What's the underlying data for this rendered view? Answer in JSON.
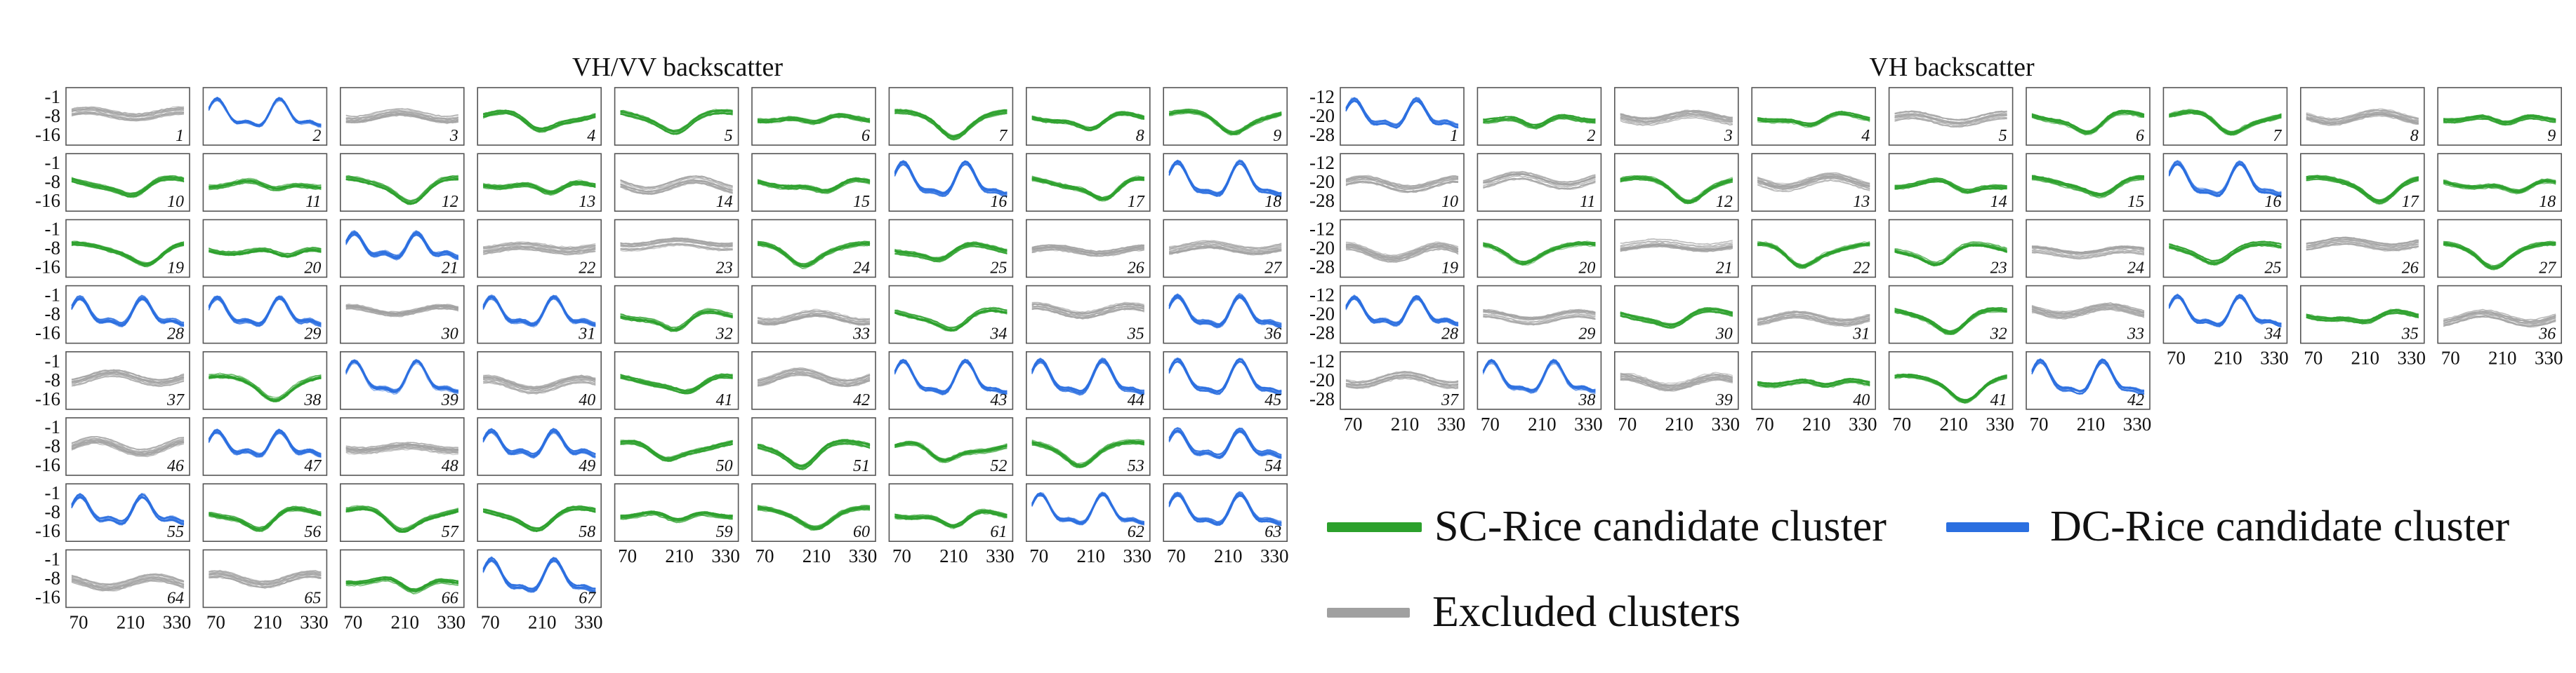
{
  "panels": [
    {
      "title": "VH/VV backscatter",
      "ytick_labels": [
        "-1",
        "-8",
        "-16"
      ],
      "xtick_labels": [
        "70",
        "210",
        "330"
      ],
      "columns": 9,
      "cluster_count": 67
    },
    {
      "title": "VH backscatter",
      "ytick_labels": [
        "-12",
        "-20",
        "-28"
      ],
      "xtick_labels": [
        "70",
        "210",
        "330"
      ],
      "columns": 9,
      "cluster_count": 42
    }
  ],
  "legend": {
    "sc_label": "SC-Rice candidate cluster",
    "dc_label": "DC-Rice candidate cluster",
    "excluded_label": "Excluded clusters"
  },
  "colors": {
    "sc": "#2ca02c",
    "dc": "#2b6fe0",
    "excluded": "#a0a0a0"
  },
  "chart_data": [
    {
      "type": "line",
      "title": "VH/VV backscatter",
      "x_ticks": [
        70,
        210,
        330
      ],
      "xlim": [
        30,
        370
      ],
      "y_ticks": [
        -1,
        -8,
        -16
      ],
      "ylim": [
        -19,
        2
      ],
      "categories_legend": {
        "sc": "SC-Rice candidate cluster",
        "dc": "DC-Rice candidate cluster",
        "excluded": "Excluded clusters"
      },
      "clusters": {
        "sc": [
          4,
          5,
          6,
          7,
          8,
          9,
          10,
          11,
          12,
          13,
          15,
          17,
          19,
          20,
          24,
          25,
          32,
          34,
          38,
          41,
          50,
          51,
          52,
          53,
          56,
          57,
          58,
          59,
          60,
          61,
          66
        ],
        "dc": [
          2,
          16,
          18,
          21,
          28,
          29,
          31,
          36,
          39,
          43,
          44,
          45,
          47,
          49,
          54,
          55,
          62,
          63,
          67
        ],
        "excluded": [
          1,
          3,
          14,
          22,
          23,
          26,
          27,
          30,
          33,
          35,
          37,
          40,
          42,
          46,
          48,
          64,
          65
        ]
      }
    },
    {
      "type": "line",
      "title": "VH backscatter",
      "x_ticks": [
        70,
        210,
        330
      ],
      "xlim": [
        30,
        370
      ],
      "y_ticks": [
        -12,
        -20,
        -28
      ],
      "ylim": [
        -31,
        -9
      ],
      "categories_legend": {
        "sc": "SC-Rice candidate cluster",
        "dc": "DC-Rice candidate cluster",
        "excluded": "Excluded clusters"
      },
      "clusters": {
        "sc": [
          2,
          4,
          6,
          7,
          9,
          12,
          14,
          15,
          17,
          18,
          20,
          22,
          23,
          25,
          27,
          30,
          32,
          35,
          40,
          41
        ],
        "dc": [
          1,
          16,
          28,
          34,
          38,
          42
        ],
        "excluded": [
          3,
          5,
          8,
          10,
          11,
          13,
          19,
          21,
          24,
          26,
          29,
          31,
          33,
          36,
          37,
          39
        ]
      }
    }
  ]
}
